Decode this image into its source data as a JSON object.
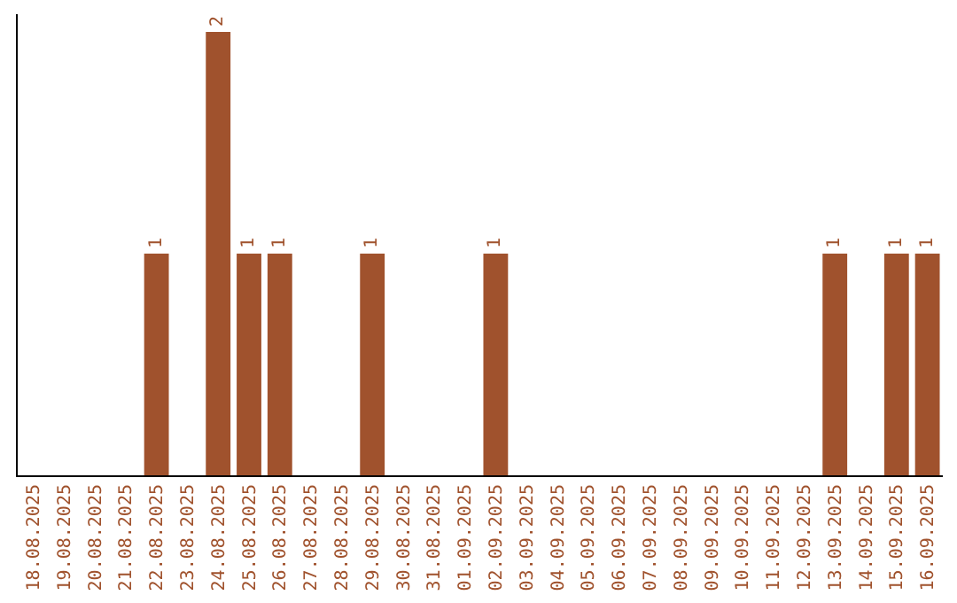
{
  "chart_data": {
    "type": "bar",
    "categories": [
      "18.08.2025",
      "19.08.2025",
      "20.08.2025",
      "21.08.2025",
      "22.08.2025",
      "23.08.2025",
      "24.08.2025",
      "25.08.2025",
      "26.08.2025",
      "27.08.2025",
      "28.08.2025",
      "29.08.2025",
      "30.08.2025",
      "31.08.2025",
      "01.09.2025",
      "02.09.2025",
      "03.09.2025",
      "04.09.2025",
      "05.09.2025",
      "06.09.2025",
      "07.09.2025",
      "08.09.2025",
      "09.09.2025",
      "10.09.2025",
      "11.09.2025",
      "12.09.2025",
      "13.09.2025",
      "14.09.2025",
      "15.09.2025",
      "16.09.2025"
    ],
    "values": [
      0,
      0,
      0,
      0,
      1,
      0,
      2,
      1,
      1,
      0,
      0,
      1,
      0,
      0,
      0,
      1,
      0,
      0,
      0,
      0,
      0,
      0,
      0,
      0,
      0,
      0,
      1,
      0,
      1,
      1
    ],
    "value_labels": [
      null,
      null,
      null,
      null,
      "1",
      null,
      "2",
      "1",
      "1",
      null,
      null,
      "1",
      null,
      null,
      null,
      "1",
      null,
      null,
      null,
      null,
      null,
      null,
      null,
      null,
      null,
      null,
      "1",
      null,
      "1",
      "1"
    ],
    "color": "#a0522d",
    "grid": false,
    "legend": false
  }
}
